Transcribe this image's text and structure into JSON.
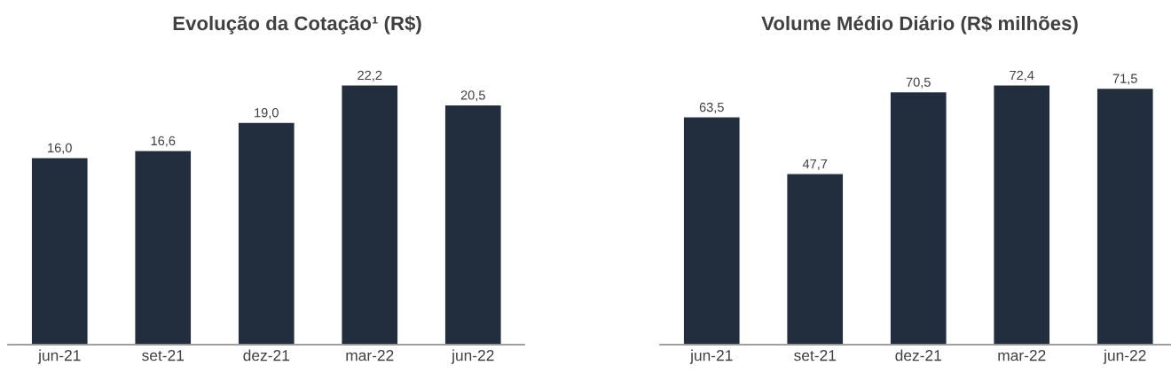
{
  "chart_data": [
    {
      "type": "bar",
      "title": "Evolução da Cotação¹ (R$)",
      "categories": [
        "jun-21",
        "set-21",
        "dez-21",
        "mar-22",
        "jun-22"
      ],
      "values": [
        16.0,
        16.6,
        19.0,
        22.2,
        20.5
      ],
      "value_labels": [
        "16,0",
        "16,6",
        "19,0",
        "22,2",
        "20,5"
      ],
      "color": "#222d3d",
      "tick_labels": "x"
    },
    {
      "type": "bar",
      "title": "Volume Médio Diário (R$ milhões)",
      "categories": [
        "jun-21",
        "set-21",
        "dez-21",
        "mar-22",
        "jun-22"
      ],
      "values": [
        63.5,
        47.7,
        70.5,
        72.4,
        71.5
      ],
      "value_labels": [
        "63,5",
        "47,7",
        "70,5",
        "72,4",
        "71,5"
      ],
      "color": "#222d3d",
      "tick_labels": "x"
    }
  ]
}
